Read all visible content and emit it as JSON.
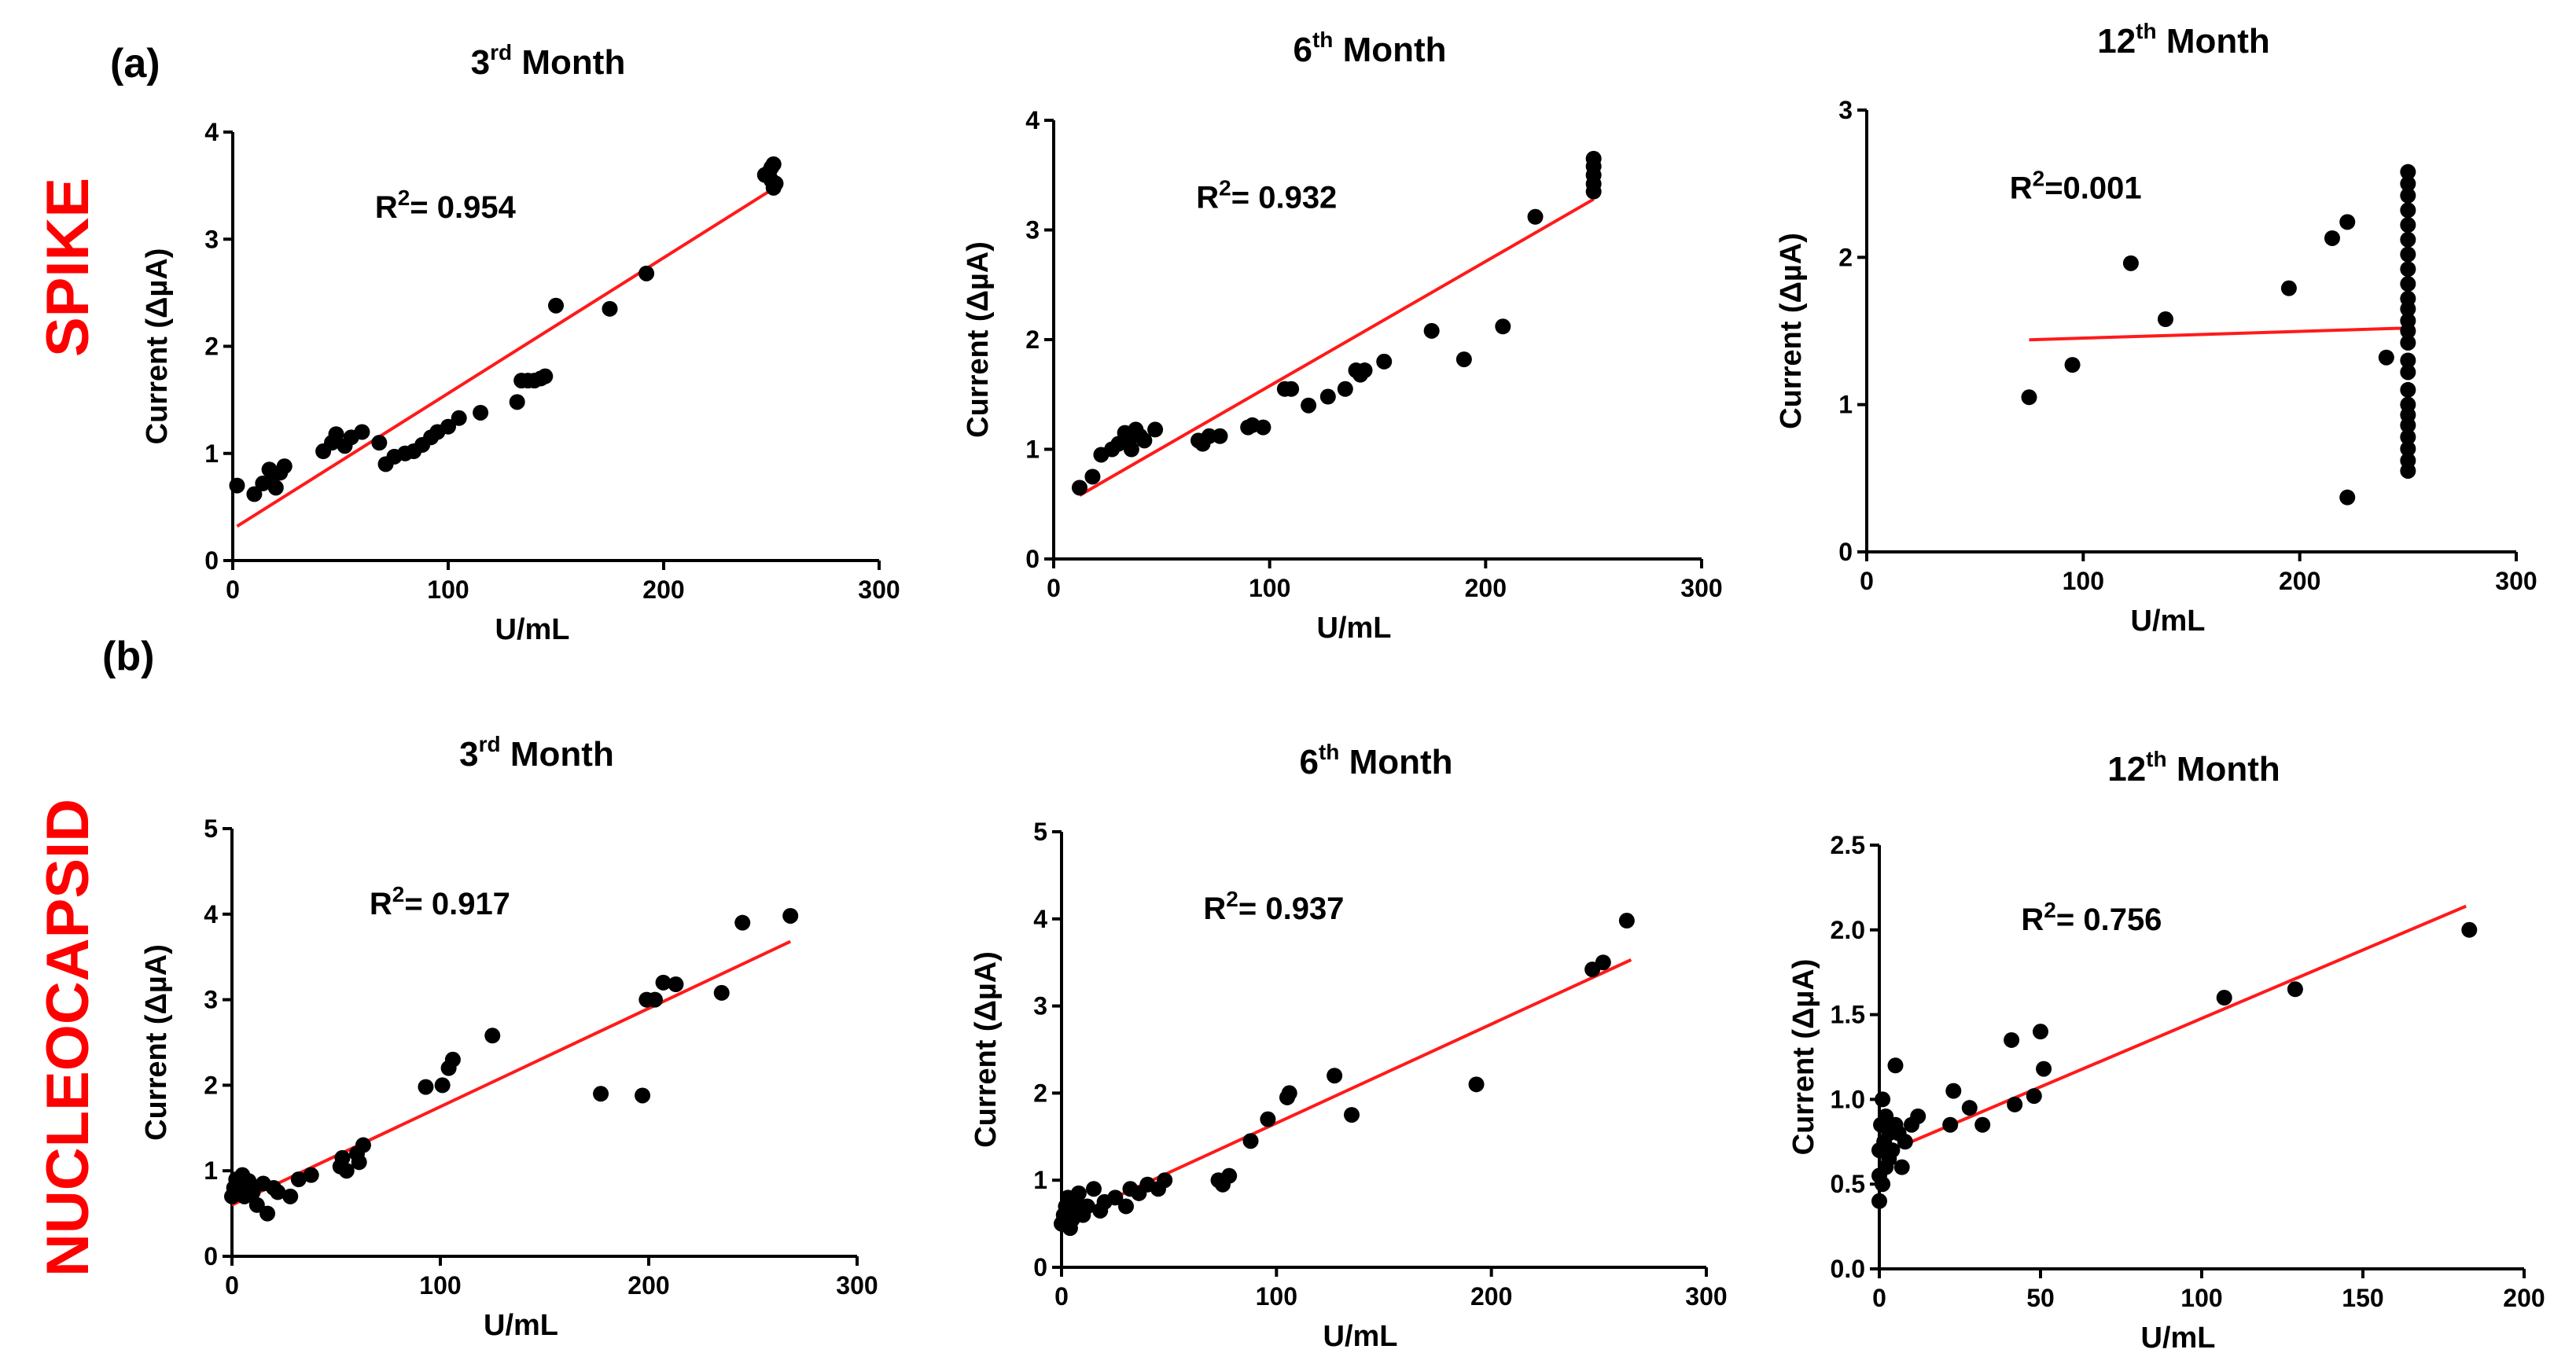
{
  "labels": {
    "a": "(a)",
    "b": "(b)",
    "row_a": "SPIKE",
    "row_b": "NUCLEOCAPSID"
  },
  "chart_data": [
    {
      "type": "scatter",
      "row": "SPIKE",
      "title": "3",
      "title_sup": "rd",
      "title_rest": " Month",
      "xlabel": "U/mL",
      "ylabel": "Current (ΔµA)",
      "xlim": [
        0,
        300
      ],
      "ylim": [
        0,
        4
      ],
      "xticks": [
        "0",
        "100",
        "200",
        "300"
      ],
      "yticks": [
        "0",
        "1",
        "2",
        "3",
        "4"
      ],
      "r2_prefix": "R",
      "r2_sup": "2",
      "r2_value": "= 0.954",
      "fit": [
        [
          2,
          0.32
        ],
        [
          250,
          3.46
        ]
      ],
      "points": [
        [
          2,
          0.7
        ],
        [
          10,
          0.62
        ],
        [
          14,
          0.72
        ],
        [
          17,
          0.85
        ],
        [
          18,
          0.75
        ],
        [
          20,
          0.68
        ],
        [
          22,
          0.82
        ],
        [
          24,
          0.88
        ],
        [
          42,
          1.02
        ],
        [
          46,
          1.1
        ],
        [
          48,
          1.18
        ],
        [
          52,
          1.07
        ],
        [
          55,
          1.15
        ],
        [
          60,
          1.2
        ],
        [
          68,
          1.1
        ],
        [
          71,
          0.9
        ],
        [
          75,
          0.97
        ],
        [
          80,
          1.0
        ],
        [
          84,
          1.02
        ],
        [
          88,
          1.08
        ],
        [
          92,
          1.15
        ],
        [
          95,
          1.2
        ],
        [
          100,
          1.25
        ],
        [
          105,
          1.33
        ],
        [
          115,
          1.38
        ],
        [
          132,
          1.48
        ],
        [
          134,
          1.68
        ],
        [
          137,
          1.68
        ],
        [
          140,
          1.68
        ],
        [
          143,
          1.7
        ],
        [
          145,
          1.72
        ],
        [
          150,
          2.38
        ],
        [
          175,
          2.35
        ],
        [
          192,
          2.68
        ],
        [
          247,
          3.6
        ],
        [
          249,
          3.63
        ],
        [
          250,
          3.67
        ],
        [
          251,
          3.7
        ],
        [
          250,
          3.55
        ],
        [
          251,
          3.48
        ],
        [
          252,
          3.52
        ]
      ]
    },
    {
      "type": "scatter",
      "row": "SPIKE",
      "title": "6",
      "title_sup": "th",
      "title_rest": " Month",
      "xlabel": "U/mL",
      "ylabel": "Current (ΔµA)",
      "xlim": [
        0,
        300
      ],
      "ylim": [
        0,
        4
      ],
      "xticks": [
        "0",
        "100",
        "200",
        "300"
      ],
      "yticks": [
        "0",
        "1",
        "2",
        "3",
        "4"
      ],
      "r2_prefix": "R",
      "r2_sup": "2",
      "r2_value": "= 0.932",
      "fit": [
        [
          12,
          0.58
        ],
        [
          250,
          3.28
        ]
      ],
      "points": [
        [
          12,
          0.65
        ],
        [
          18,
          0.75
        ],
        [
          22,
          0.95
        ],
        [
          27,
          1.0
        ],
        [
          30,
          1.05
        ],
        [
          33,
          1.15
        ],
        [
          35,
          1.1
        ],
        [
          36,
          1.0
        ],
        [
          38,
          1.18
        ],
        [
          40,
          1.12
        ],
        [
          42,
          1.08
        ],
        [
          47,
          1.18
        ],
        [
          67,
          1.08
        ],
        [
          69,
          1.05
        ],
        [
          72,
          1.12
        ],
        [
          77,
          1.12
        ],
        [
          90,
          1.2
        ],
        [
          92,
          1.22
        ],
        [
          97,
          1.2
        ],
        [
          107,
          1.55
        ],
        [
          110,
          1.55
        ],
        [
          118,
          1.4
        ],
        [
          127,
          1.48
        ],
        [
          135,
          1.55
        ],
        [
          140,
          1.72
        ],
        [
          142,
          1.68
        ],
        [
          144,
          1.72
        ],
        [
          153,
          1.8
        ],
        [
          175,
          2.08
        ],
        [
          190,
          1.82
        ],
        [
          208,
          2.12
        ],
        [
          223,
          3.12
        ],
        [
          250,
          3.35
        ],
        [
          250,
          3.42
        ],
        [
          250,
          3.5
        ],
        [
          250,
          3.58
        ],
        [
          250,
          3.65
        ]
      ]
    },
    {
      "type": "scatter",
      "row": "SPIKE",
      "title": "12",
      "title_sup": "th",
      "title_rest": " Month",
      "xlabel": "U/mL",
      "ylabel": "Current (ΔµA)",
      "xlim": [
        0,
        300
      ],
      "ylim": [
        0,
        3
      ],
      "xticks": [
        "0",
        "100",
        "200",
        "300"
      ],
      "yticks": [
        "0",
        "1",
        "2",
        "3"
      ],
      "r2_prefix": "R",
      "r2_sup": "2",
      "r2_value": "=0.001",
      "fit": [
        [
          75,
          1.44
        ],
        [
          250,
          1.52
        ]
      ],
      "points": [
        [
          75,
          1.05
        ],
        [
          95,
          1.27
        ],
        [
          122,
          1.96
        ],
        [
          138,
          1.58
        ],
        [
          195,
          1.79
        ],
        [
          215,
          2.13
        ],
        [
          222,
          2.24
        ],
        [
          222,
          0.37
        ],
        [
          240,
          1.32
        ],
        [
          250,
          0.55
        ],
        [
          250,
          0.62
        ],
        [
          250,
          0.7
        ],
        [
          250,
          0.78
        ],
        [
          250,
          0.86
        ],
        [
          250,
          0.93
        ],
        [
          250,
          1.0
        ],
        [
          250,
          1.1
        ],
        [
          250,
          1.22
        ],
        [
          250,
          1.3
        ],
        [
          250,
          1.42
        ],
        [
          250,
          1.5
        ],
        [
          250,
          1.57
        ],
        [
          250,
          1.65
        ],
        [
          250,
          1.72
        ],
        [
          250,
          1.82
        ],
        [
          250,
          1.92
        ],
        [
          250,
          2.02
        ],
        [
          250,
          2.12
        ],
        [
          250,
          2.22
        ],
        [
          250,
          2.32
        ],
        [
          250,
          2.42
        ],
        [
          250,
          2.5
        ],
        [
          250,
          2.58
        ]
      ]
    },
    {
      "type": "scatter",
      "row": "NUCLEOCAPSID",
      "title": "3",
      "title_sup": "rd",
      "title_rest": " Month",
      "xlabel": "U/mL",
      "ylabel": "Current (ΔµA)",
      "xlim": [
        0,
        300
      ],
      "ylim": [
        0,
        5
      ],
      "xticks": [
        "0",
        "100",
        "200",
        "300"
      ],
      "yticks": [
        "0",
        "1",
        "2",
        "3",
        "4",
        "5"
      ],
      "r2_prefix": "R",
      "r2_sup": "2",
      "r2_value": "= 0.917",
      "fit": [
        [
          0,
          0.6
        ],
        [
          268,
          3.68
        ]
      ],
      "points": [
        [
          0,
          0.7
        ],
        [
          1,
          0.8
        ],
        [
          2,
          0.9
        ],
        [
          3,
          0.75
        ],
        [
          4,
          0.85
        ],
        [
          5,
          0.95
        ],
        [
          6,
          0.7
        ],
        [
          7,
          0.8
        ],
        [
          8,
          0.88
        ],
        [
          10,
          0.75
        ],
        [
          12,
          0.6
        ],
        [
          15,
          0.85
        ],
        [
          17,
          0.5
        ],
        [
          20,
          0.8
        ],
        [
          22,
          0.75
        ],
        [
          28,
          0.7
        ],
        [
          32,
          0.9
        ],
        [
          38,
          0.95
        ],
        [
          52,
          1.05
        ],
        [
          53,
          1.15
        ],
        [
          55,
          1.0
        ],
        [
          60,
          1.2
        ],
        [
          61,
          1.1
        ],
        [
          63,
          1.3
        ],
        [
          93,
          1.98
        ],
        [
          101,
          2.0
        ],
        [
          104,
          2.2
        ],
        [
          106,
          2.3
        ],
        [
          125,
          2.58
        ],
        [
          177,
          1.9
        ],
        [
          197,
          1.88
        ],
        [
          199,
          3.0
        ],
        [
          203,
          3.0
        ],
        [
          207,
          3.2
        ],
        [
          213,
          3.18
        ],
        [
          235,
          3.08
        ],
        [
          245,
          3.9
        ],
        [
          268,
          3.98
        ]
      ]
    },
    {
      "type": "scatter",
      "row": "NUCLEOCAPSID",
      "title": "6",
      "title_sup": "th",
      "title_rest": " Month",
      "xlabel": "U/mL",
      "ylabel": "Current (ΔµA)",
      "xlim": [
        0,
        300
      ],
      "ylim": [
        0,
        5
      ],
      "xticks": [
        "0",
        "100",
        "200",
        "300"
      ],
      "yticks": [
        "0",
        "1",
        "2",
        "3",
        "4",
        "5"
      ],
      "r2_prefix": "R",
      "r2_sup": "2",
      "r2_value": "= 0.937",
      "fit": [
        [
          0,
          0.52
        ],
        [
          265,
          3.53
        ]
      ],
      "points": [
        [
          0,
          0.5
        ],
        [
          1,
          0.6
        ],
        [
          2,
          0.7
        ],
        [
          3,
          0.8
        ],
        [
          4,
          0.45
        ],
        [
          5,
          0.55
        ],
        [
          6,
          0.65
        ],
        [
          7,
          0.75
        ],
        [
          8,
          0.85
        ],
        [
          10,
          0.6
        ],
        [
          12,
          0.7
        ],
        [
          15,
          0.9
        ],
        [
          18,
          0.65
        ],
        [
          20,
          0.75
        ],
        [
          25,
          0.8
        ],
        [
          30,
          0.7
        ],
        [
          32,
          0.9
        ],
        [
          36,
          0.85
        ],
        [
          40,
          0.95
        ],
        [
          45,
          0.9
        ],
        [
          48,
          1.0
        ],
        [
          73,
          1.0
        ],
        [
          75,
          0.95
        ],
        [
          78,
          1.05
        ],
        [
          88,
          1.45
        ],
        [
          96,
          1.7
        ],
        [
          105,
          1.95
        ],
        [
          106,
          2.0
        ],
        [
          127,
          2.2
        ],
        [
          135,
          1.75
        ],
        [
          193,
          2.1
        ],
        [
          247,
          3.42
        ],
        [
          252,
          3.5
        ],
        [
          263,
          3.98
        ]
      ]
    },
    {
      "type": "scatter",
      "row": "NUCLEOCAPSID",
      "title": "12",
      "title_sup": "th",
      "title_rest": " Month",
      "xlabel": "U/mL",
      "ylabel": "Current (ΔµA)",
      "xlim": [
        0,
        200
      ],
      "ylim": [
        0,
        2.5
      ],
      "xticks": [
        "0",
        "50",
        "100",
        "150",
        "200"
      ],
      "yticks": [
        "0.0",
        "0.5",
        "1.0",
        "1.5",
        "2.0",
        "2.5"
      ],
      "r2_prefix": "R",
      "r2_sup": "2",
      "r2_value": "= 0.756",
      "fit": [
        [
          0,
          0.67
        ],
        [
          182,
          2.14
        ]
      ],
      "points": [
        [
          0,
          0.4
        ],
        [
          0,
          0.55
        ],
        [
          0,
          0.7
        ],
        [
          0.5,
          0.85
        ],
        [
          1,
          0.5
        ],
        [
          1,
          1.0
        ],
        [
          1.5,
          0.75
        ],
        [
          2,
          0.6
        ],
        [
          2,
          0.9
        ],
        [
          3,
          0.65
        ],
        [
          3,
          0.8
        ],
        [
          4,
          0.7
        ],
        [
          5,
          0.85
        ],
        [
          5,
          1.2
        ],
        [
          6,
          0.8
        ],
        [
          7,
          0.6
        ],
        [
          8,
          0.75
        ],
        [
          10,
          0.85
        ],
        [
          12,
          0.9
        ],
        [
          22,
          0.85
        ],
        [
          23,
          1.05
        ],
        [
          28,
          0.95
        ],
        [
          32,
          0.85
        ],
        [
          41,
          1.35
        ],
        [
          42,
          0.97
        ],
        [
          48,
          1.02
        ],
        [
          50,
          1.4
        ],
        [
          51,
          1.18
        ],
        [
          107,
          1.6
        ],
        [
          129,
          1.65
        ],
        [
          183,
          2.0
        ]
      ]
    }
  ]
}
